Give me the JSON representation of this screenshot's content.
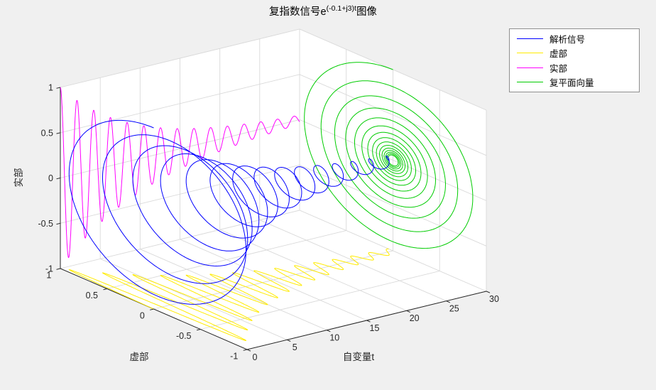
{
  "window": {
    "background": "#f0f0f0",
    "plot_background": "#ffffff",
    "grid_color": "#d9d9d9",
    "axis_color": "#262626"
  },
  "title": {
    "prefix": "复指数信号e",
    "superscript": "(-0.1+j3)t",
    "suffix": "图像",
    "full": "复指数信号e^{(-0.1+j3)t}图像"
  },
  "legend": {
    "items": [
      {
        "key": "analytic-signal",
        "label": "解析信号",
        "color": "#0000FF"
      },
      {
        "key": "imag-part",
        "label": "虚部",
        "color": "#FFEB00"
      },
      {
        "key": "real-part",
        "label": "实部",
        "color": "#FF00FF"
      },
      {
        "key": "complex-plane-vector",
        "label": "复平面向量",
        "color": "#00CC00"
      }
    ]
  },
  "axes": {
    "x": {
      "label": "自变量t",
      "min": 0,
      "max": 30,
      "tick_labels": [
        "0",
        "5",
        "10",
        "15",
        "20",
        "25",
        "30"
      ]
    },
    "y": {
      "label": "虚部",
      "min": -1,
      "max": 1,
      "tick_labels": [
        "1",
        "0.5",
        "0",
        "-0.5",
        "-1"
      ]
    },
    "z": {
      "label": "实部",
      "min": -1,
      "max": 1,
      "tick_labels": [
        "-1",
        "-0.5",
        "0",
        "0.5",
        "1"
      ]
    }
  },
  "chart_data": {
    "type": "line",
    "plot_style": "matlab-3d-line-plot",
    "title": "复指数信号e^{(-0.1+j3)t}图像",
    "function": "f(t) = e^{(-0.1+j3)t} = e^{-0.1t}·(cos(3t) + j·sin(3t))",
    "parameters": {
      "damping_sigma": -0.1,
      "angular_frequency_omega": 3
    },
    "t_range": [
      0,
      30
    ],
    "xlabel": "自变量t",
    "ylabel": "虚部",
    "zlabel": "实部",
    "xlim": [
      0,
      30
    ],
    "ylim": [
      -1,
      1
    ],
    "zlim": [
      -1,
      1
    ],
    "xticks": [
      0,
      5,
      10,
      15,
      20,
      25,
      30
    ],
    "yticks": [
      1,
      0.5,
      0,
      -0.5,
      -1
    ],
    "zticks": [
      -1,
      -0.5,
      0,
      0.5,
      1
    ],
    "grid": true,
    "legend_location": "northeast-outside",
    "series": [
      {
        "key": "analytic-signal",
        "name": "解析信号",
        "color": "#0000FF",
        "x": "t",
        "y": "e^{-0.1t}·sin(3t)",
        "z": "e^{-0.1t}·cos(3t)",
        "projection": "signal"
      },
      {
        "key": "imag-part",
        "name": "虚部",
        "color": "#FFEB00",
        "x": "t",
        "y": "e^{-0.1t}·sin(3t)",
        "z": "-1",
        "projection": "floor"
      },
      {
        "key": "real-part",
        "name": "实部",
        "color": "#FF00FF",
        "x": "t",
        "y": "1",
        "z": "e^{-0.1t}·cos(3t)",
        "projection": "back"
      },
      {
        "key": "complex-plane-vector",
        "name": "复平面向量",
        "color": "#00CC00",
        "x": "30",
        "y": "e^{-0.1t}·sin(3t)",
        "z": "e^{-0.1t}·cos(3t)",
        "projection": "side"
      }
    ]
  }
}
